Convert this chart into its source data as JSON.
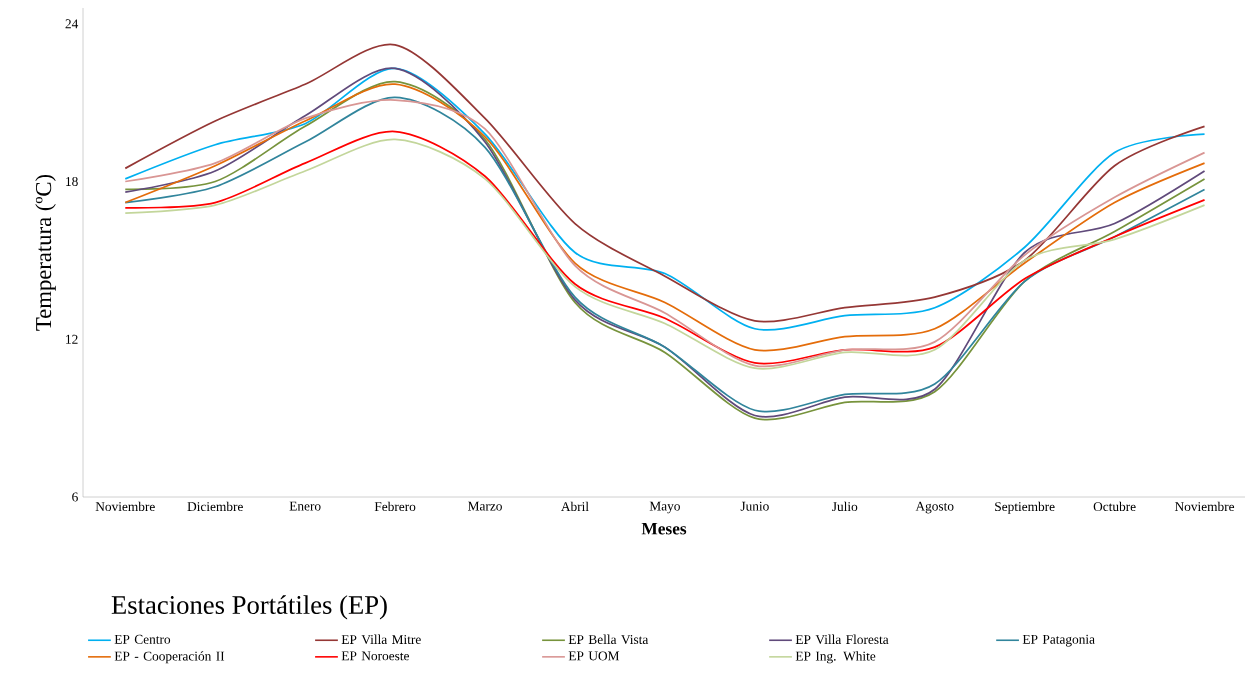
{
  "chart_data": {
    "type": "line",
    "xlabel": "Meses",
    "ylabel": "Temperatura (ºC)",
    "legend_title": "Estaciones Portátiles (EP)",
    "categories": [
      "Noviembre",
      "Diciembre",
      "Enero",
      "Febrero",
      "Marzo",
      "Abril",
      "Mayo",
      "Junio",
      "Julio",
      "Agosto",
      "Septiembre",
      "Octubre",
      "Noviembre"
    ],
    "ylim": [
      6,
      24.6
    ],
    "yticks": [
      6,
      12,
      18,
      24
    ],
    "grid": false,
    "legend": "bottom",
    "marker": "none",
    "line_style": "solid",
    "series": [
      {
        "name": "EP Centro",
        "color": "#00b0f0",
        "values": [
          18.1,
          19.4,
          20.2,
          22.3,
          19.8,
          15.3,
          14.5,
          12.4,
          12.9,
          13.2,
          15.5,
          19.1,
          19.8
        ]
      },
      {
        "name": "EP Villa  Mitre",
        "color": "#953735",
        "values": [
          18.5,
          20.3,
          21.7,
          23.2,
          20.4,
          16.4,
          14.4,
          12.7,
          13.2,
          13.6,
          15.0,
          18.6,
          20.1
        ]
      },
      {
        "name": "EP Bella Vista",
        "color": "#77933c",
        "values": [
          17.7,
          18.0,
          20.1,
          21.8,
          19.6,
          13.4,
          11.5,
          9.0,
          9.6,
          10.0,
          14.2,
          16.1,
          18.1
        ]
      },
      {
        "name": "EP Villa Floresta",
        "color": "#604a7b",
        "values": [
          17.6,
          18.4,
          20.5,
          22.3,
          19.5,
          13.5,
          11.7,
          9.1,
          9.8,
          10.1,
          15.3,
          16.4,
          18.4
        ]
      },
      {
        "name": "EP Patagonia",
        "color": "#31859c",
        "values": [
          17.2,
          17.8,
          19.5,
          21.2,
          19.3,
          13.6,
          11.7,
          9.3,
          9.9,
          10.3,
          14.2,
          15.9,
          17.7
        ]
      },
      {
        "name": "EP  - Cooperación II",
        "color": "#e46c0a",
        "values": [
          17.2,
          18.6,
          20.3,
          21.7,
          19.7,
          14.9,
          13.4,
          11.6,
          12.1,
          12.4,
          14.9,
          17.2,
          18.7
        ]
      },
      {
        "name": "EP Noroeste",
        "color": "#ff0000",
        "values": [
          17.0,
          17.2,
          18.7,
          19.9,
          18.2,
          14.1,
          12.8,
          11.1,
          11.6,
          11.7,
          14.3,
          15.9,
          17.3
        ]
      },
      {
        "name": "EP UOM",
        "color": "#d99694",
        "values": [
          18.0,
          18.7,
          20.4,
          21.1,
          20.0,
          14.8,
          13.0,
          11.0,
          11.6,
          11.9,
          15.2,
          17.4,
          19.1
        ]
      },
      {
        "name": "EP Ing. White",
        "color": "#c3d69b",
        "values": [
          16.8,
          17.1,
          18.4,
          19.6,
          18.1,
          14.0,
          12.6,
          10.9,
          11.5,
          11.6,
          15.0,
          15.8,
          17.1
        ]
      }
    ]
  }
}
